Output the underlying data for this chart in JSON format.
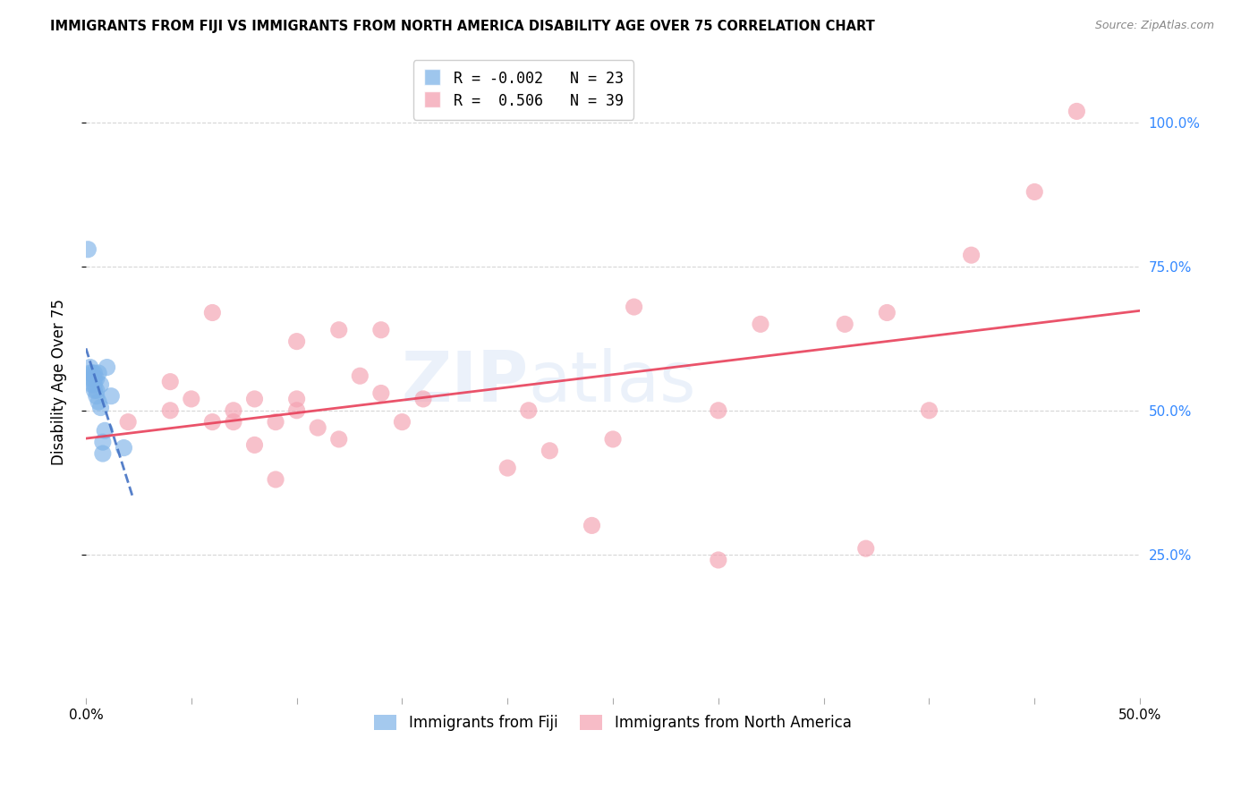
{
  "title": "IMMIGRANTS FROM FIJI VS IMMIGRANTS FROM NORTH AMERICA DISABILITY AGE OVER 75 CORRELATION CHART",
  "source": "Source: ZipAtlas.com",
  "ylabel": "Disability Age Over 75",
  "xlim": [
    0.0,
    0.5
  ],
  "ylim": [
    0.0,
    1.1
  ],
  "xticks": [
    0.0,
    0.05,
    0.1,
    0.15,
    0.2,
    0.25,
    0.3,
    0.35,
    0.4,
    0.45,
    0.5
  ],
  "xtick_labels": [
    "0.0%",
    "",
    "",
    "",
    "",
    "",
    "",
    "",
    "",
    "",
    "50.0%"
  ],
  "yticks": [
    0.25,
    0.5,
    0.75,
    1.0
  ],
  "ytick_labels_right": [
    "25.0%",
    "50.0%",
    "75.0%",
    "100.0%"
  ],
  "fiji_color": "#7eb3e8",
  "na_color": "#f4a0b0",
  "fiji_line_color": "#4472c4",
  "na_line_color": "#e8405a",
  "fiji_R": -0.002,
  "fiji_N": 23,
  "na_R": 0.506,
  "na_N": 39,
  "watermark_text": "ZIP",
  "watermark_text2": "atlas",
  "grid_color": "#cccccc",
  "fiji_x": [
    0.001,
    0.002,
    0.002,
    0.003,
    0.003,
    0.003,
    0.004,
    0.004,
    0.004,
    0.004,
    0.005,
    0.005,
    0.005,
    0.006,
    0.006,
    0.007,
    0.007,
    0.008,
    0.008,
    0.009,
    0.01,
    0.012,
    0.018
  ],
  "fiji_y": [
    0.78,
    0.565,
    0.575,
    0.545,
    0.555,
    0.565,
    0.535,
    0.545,
    0.555,
    0.565,
    0.525,
    0.535,
    0.555,
    0.515,
    0.565,
    0.505,
    0.545,
    0.425,
    0.445,
    0.465,
    0.575,
    0.525,
    0.435
  ],
  "na_x": [
    0.02,
    0.04,
    0.04,
    0.05,
    0.06,
    0.06,
    0.07,
    0.07,
    0.08,
    0.08,
    0.09,
    0.09,
    0.1,
    0.1,
    0.1,
    0.11,
    0.12,
    0.12,
    0.13,
    0.14,
    0.14,
    0.15,
    0.16,
    0.2,
    0.21,
    0.22,
    0.24,
    0.25,
    0.26,
    0.3,
    0.3,
    0.32,
    0.36,
    0.37,
    0.38,
    0.4,
    0.42,
    0.45,
    0.47
  ],
  "na_y": [
    0.48,
    0.5,
    0.55,
    0.52,
    0.48,
    0.67,
    0.48,
    0.5,
    0.44,
    0.52,
    0.38,
    0.48,
    0.5,
    0.52,
    0.62,
    0.47,
    0.45,
    0.64,
    0.56,
    0.53,
    0.64,
    0.48,
    0.52,
    0.4,
    0.5,
    0.43,
    0.3,
    0.45,
    0.68,
    0.5,
    0.24,
    0.65,
    0.65,
    0.26,
    0.67,
    0.5,
    0.77,
    0.88,
    1.02
  ],
  "fiji_line_xrange": [
    0.0,
    0.022
  ],
  "na_line_xrange": [
    0.0,
    0.5
  ]
}
